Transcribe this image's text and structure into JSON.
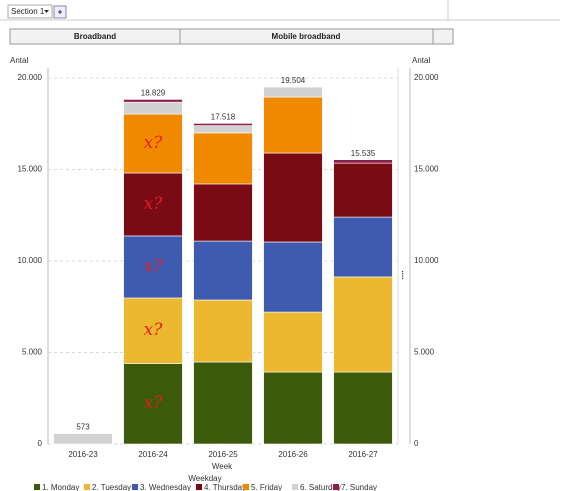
{
  "ui": {
    "section": "Section 1",
    "add_button": "+",
    "tabs": [
      "Broadband",
      "Mobile broadband"
    ]
  },
  "chart_data": {
    "type": "stacked-bar",
    "y_label": "Antal",
    "y2_label": "Antal",
    "x_label": "Week",
    "legend_title": "Weekday",
    "categories": [
      "2016-23",
      "2016-24",
      "2016-25",
      "2016-26",
      "2016-27"
    ],
    "series": [
      {
        "name": "1. Monday",
        "color": "#3b5b0b",
        "values": [
          0,
          4400,
          4480,
          3930,
          3930
        ]
      },
      {
        "name": "2. Tuesday",
        "color": "#ebb82f",
        "values": [
          0,
          3580,
          3390,
          3280,
          5200
        ]
      },
      {
        "name": "3. Wednesday",
        "color": "#3e5bb0",
        "values": [
          0,
          3390,
          3220,
          3830,
          3270
        ]
      },
      {
        "name": "4. Thursday",
        "color": "#7a0a14",
        "values": [
          0,
          3440,
          3120,
          4860,
          2950
        ]
      },
      {
        "name": "5. Friday",
        "color": "#f08900",
        "values": [
          0,
          3220,
          2790,
          3060,
          0
        ]
      },
      {
        "name": "6. Saturday",
        "color": "#d2d2d2",
        "values": [
          573,
          650,
          400,
          544,
          0
        ]
      },
      {
        "name": "7. Sunday",
        "color": "#8c1d4c",
        "values": [
          0,
          149,
          118,
          0,
          185
        ]
      }
    ],
    "totals": [
      573,
      {
        "value": 18829,
        "label": "18.829"
      },
      {
        "value": 17518,
        "label": "17.518"
      },
      {
        "value": 19504,
        "label": "19.504"
      },
      {
        "value": 15535,
        "label": "15.535"
      }
    ],
    "annotations": [
      "x?",
      "x?",
      "x?",
      "x?",
      "x?"
    ],
    "ylim": [
      0,
      20000
    ],
    "yticks": [
      0,
      {
        "value": 5000,
        "label": "5.000"
      },
      {
        "value": 10000,
        "label": "10.000"
      },
      {
        "value": 15000,
        "label": "15.000"
      },
      {
        "value": 20000,
        "label": "20.000"
      }
    ],
    "y2lim": [
      0,
      20000
    ],
    "y2ticks": [
      0,
      {
        "value": 5000,
        "label": "5.000"
      },
      {
        "value": 10000,
        "label": "10.000"
      },
      {
        "value": 15000,
        "label": "15.000"
      },
      {
        "value": 20000,
        "label": "20.000"
      }
    ],
    "grid": true
  }
}
